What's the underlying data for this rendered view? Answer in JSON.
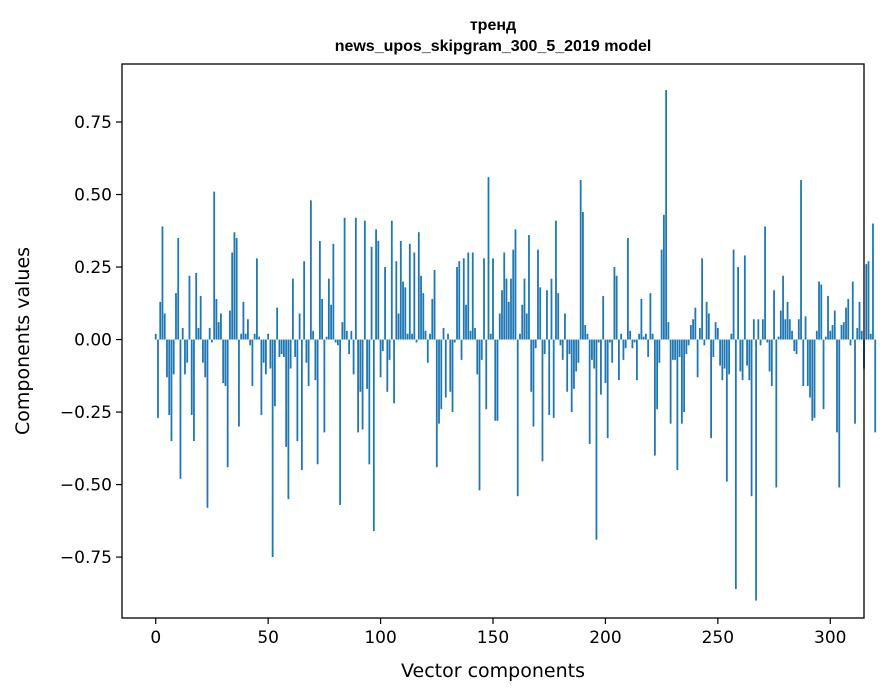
{
  "chart_data": {
    "type": "bar",
    "title": "тренд",
    "subtitle": "news_upos_skipgram_300_5_2019 model",
    "xlabel": "Vector components",
    "ylabel": "Components values",
    "xlim": [
      -15,
      315
    ],
    "ylim": [
      -0.96,
      0.95
    ],
    "xticks": [
      0,
      50,
      100,
      150,
      200,
      250,
      300
    ],
    "yticks": [
      -0.75,
      -0.5,
      -0.25,
      0.0,
      0.25,
      0.5,
      0.75
    ],
    "xtick_labels": [
      "0",
      "50",
      "100",
      "150",
      "200",
      "250",
      "300"
    ],
    "ytick_labels": [
      "−0.75",
      "−0.50",
      "−0.25",
      "0.00",
      "0.25",
      "0.50",
      "0.75"
    ],
    "grid": false,
    "bar_color": "#1f77b4",
    "values": [
      0.02,
      -0.27,
      0.13,
      0.39,
      0.09,
      -0.13,
      -0.26,
      -0.35,
      -0.12,
      0.16,
      0.35,
      -0.48,
      0.04,
      -0.12,
      -0.08,
      0.22,
      -0.26,
      -0.35,
      0.23,
      0.04,
      0.15,
      -0.08,
      -0.13,
      -0.58,
      0.04,
      -0.01,
      0.51,
      0.14,
      0.06,
      0.09,
      -0.15,
      -0.16,
      -0.44,
      0.1,
      0.3,
      0.37,
      0.35,
      -0.3,
      0.02,
      0.13,
      0.02,
      0.07,
      -0.02,
      -0.16,
      0.02,
      0.28,
      0.01,
      -0.26,
      -0.08,
      -0.12,
      0.02,
      -0.1,
      -0.75,
      -0.23,
      0.11,
      -0.06,
      -0.05,
      -0.06,
      -0.37,
      -0.55,
      -0.1,
      0.21,
      -0.06,
      -0.35,
      0.09,
      -0.45,
      0.27,
      -0.08,
      -0.16,
      0.48,
      0.03,
      -0.14,
      -0.43,
      0.34,
      0.14,
      -0.32,
      0.01,
      0.21,
      0.12,
      0.33,
      -0.01,
      -0.02,
      -0.57,
      0.06,
      0.42,
      0.03,
      -0.05,
      0.03,
      -0.12,
      0.42,
      -0.32,
      -0.18,
      -0.31,
      0.41,
      -0.17,
      -0.43,
      0.32,
      -0.66,
      0.38,
      0.34,
      -0.13,
      -0.04,
      0.25,
      -0.18,
      -0.07,
      0.41,
      -0.22,
      0.27,
      0.09,
      0.34,
      0.2,
      0.18,
      0.02,
      0.33,
      0.02,
      0.3,
      -0.01,
      0.37,
      0.22,
      0.16,
      0.03,
      -0.08,
      0.02,
      0.14,
      0.24,
      -0.44,
      -0.29,
      -0.24,
      0.04,
      -0.2,
      0.02,
      -0.18,
      -0.25,
      -0.01,
      0.25,
      0.27,
      -0.07,
      0.28,
      0.12,
      0.3,
      0.03,
      0.3,
      0.04,
      -0.12,
      -0.52,
      -0.07,
      0.28,
      -0.24,
      0.56,
      0.02,
      0.28,
      -0.28,
      -0.28,
      0.09,
      0.17,
      0.3,
      0.21,
      0.13,
      0.21,
      0.31,
      0.38,
      -0.54,
      0.02,
      0.12,
      0.21,
      0.09,
      0.36,
      -0.18,
      -0.3,
      -0.03,
      0.31,
      0.18,
      -0.42,
      -0.05,
      0.17,
      -0.26,
      0.21,
      -0.27,
      0.41,
      0.16,
      -0.02,
      -0.07,
      0.09,
      -0.18,
      -0.05,
      -0.25,
      -0.17,
      -0.11,
      -0.08,
      0.55,
      0.44,
      0.05,
      0.02,
      -0.36,
      -0.07,
      -0.1,
      -0.69,
      -0.01,
      -0.19,
      0.15,
      -0.15,
      -0.34,
      -0.01,
      -0.08,
      0.25,
      0.22,
      -0.14,
      0.02,
      -0.07,
      -0.03,
      0.35,
      0.03,
      -0.03,
      -0.01,
      -0.14,
      0.02,
      0.14,
      0.01,
      0.02,
      -0.06,
      0.16,
      0.02,
      -0.4,
      -0.24,
      -0.08,
      0.31,
      0.43,
      0.86,
      0.06,
      -0.29,
      -0.07,
      -0.07,
      -0.45,
      -0.06,
      -0.29,
      -0.25,
      -0.05,
      -0.02,
      0.05,
      0.07,
      0.11,
      -0.13,
      0.04,
      0.28,
      -0.02,
      0.13,
      0.09,
      -0.34,
      -0.06,
      0.06,
      0.04,
      -0.09,
      -0.14,
      -0.1,
      -0.49,
      -0.12,
      0.02,
      0.31,
      -0.86,
      0.25,
      -0.11,
      -0.14,
      0.29,
      -0.09,
      -0.14,
      -0.54,
      0.07,
      -0.9,
      0.07,
      -0.02,
      0.07,
      0.39,
      -0.01,
      -0.11,
      -0.16,
      0.17,
      -0.51,
      0.01,
      0.1,
      0.22,
      0.07,
      0.13,
      0.07,
      0.03,
      -0.04,
      -0.05,
      0.07,
      0.55,
      -0.16,
      0.08,
      -0.16,
      -0.2,
      -0.28,
      -0.27,
      0.03,
      0.2,
      0.19,
      -0.24,
      0.01,
      0.15,
      0.03,
      0.05,
      0.1,
      -0.32,
      -0.51,
      0.05,
      0.06,
      0.11,
      0.14,
      -0.02,
      0.2,
      -0.29,
      0.04,
      0.13,
      0.03,
      -0.1,
      0.26,
      0.27,
      0.02,
      0.4,
      -0.32
    ]
  }
}
